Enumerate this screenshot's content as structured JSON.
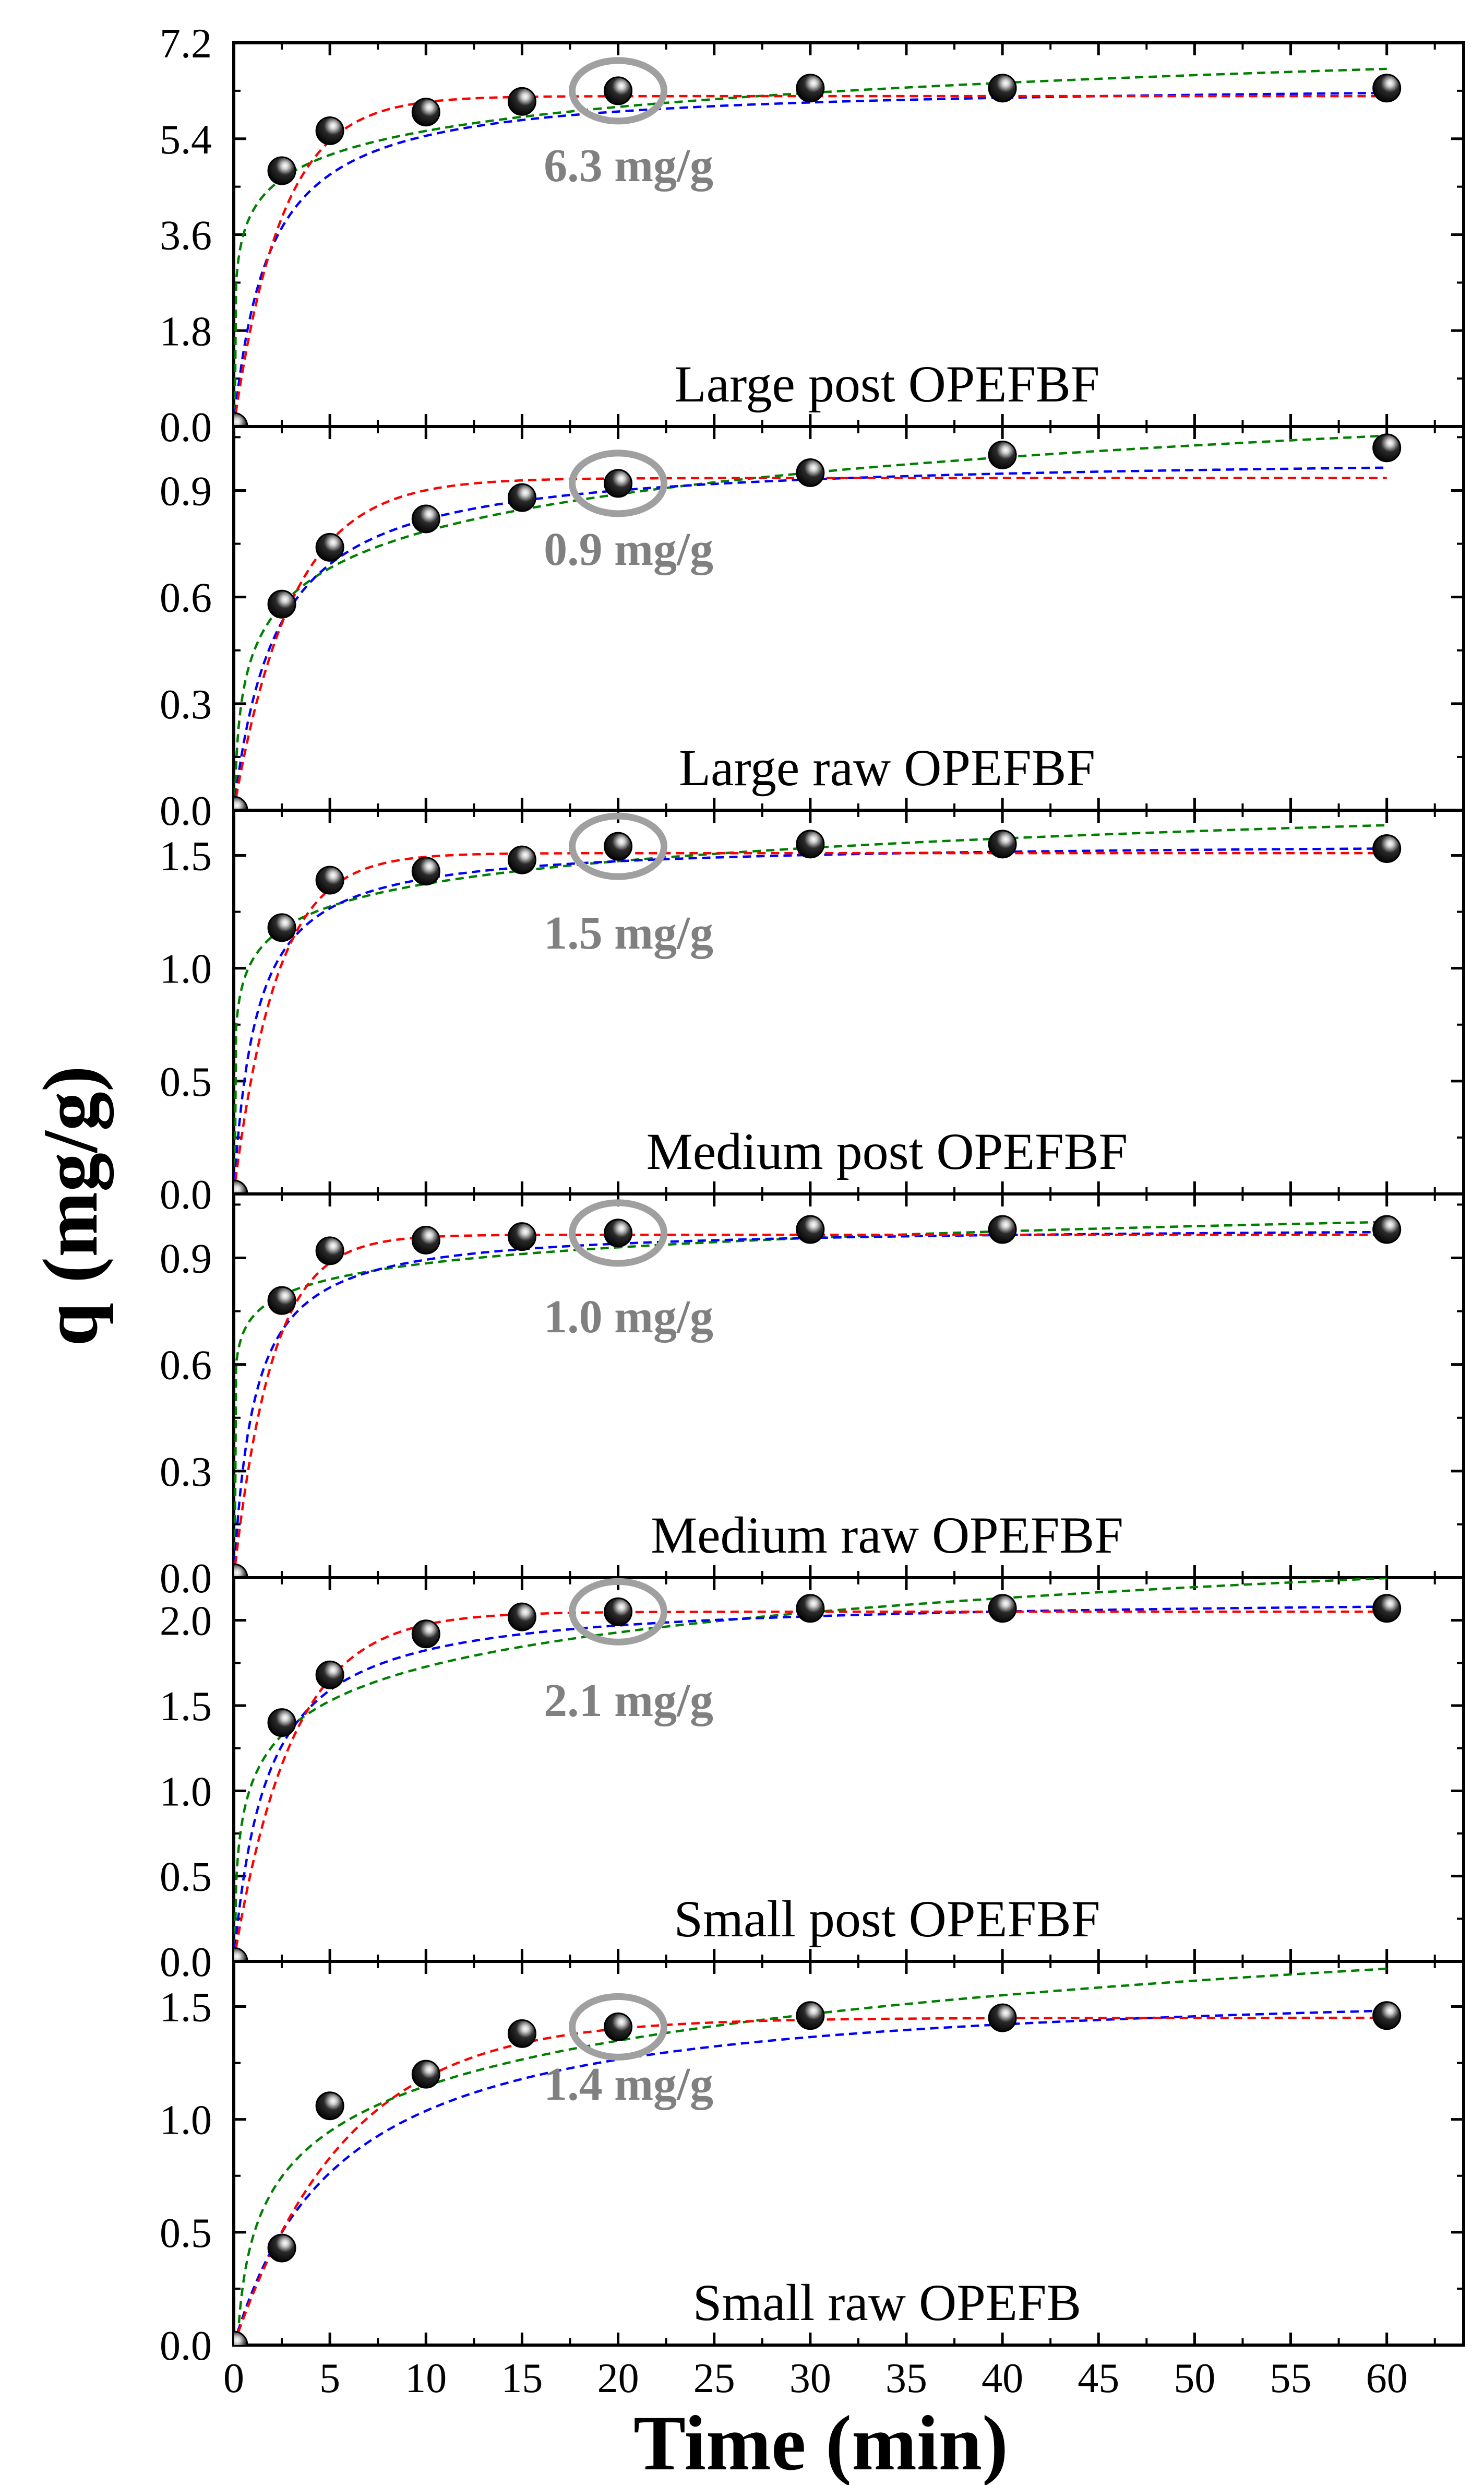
{
  "chart_data": {
    "type": "scatter",
    "xlabel": "Time (min)",
    "ylabel": "q (mg/g)",
    "xlim": [
      0,
      64
    ],
    "x_ticks": [
      "0",
      "5",
      "10",
      "15",
      "20",
      "25",
      "30",
      "35",
      "40",
      "45",
      "50",
      "55",
      "60"
    ],
    "x": [
      0,
      2.5,
      5,
      10,
      15,
      20,
      30,
      40,
      60
    ],
    "fit_colors": {
      "red": "#ff0000",
      "blue": "#0000ff",
      "green": "#008000"
    },
    "highlight_color": "#a0a0a0",
    "panels": [
      {
        "label": "Large post OPEFBF",
        "ylim": [
          0,
          7.2
        ],
        "y_ticks": [
          "0.0",
          "1.8",
          "3.6",
          "5.4",
          "7.2"
        ],
        "y": [
          0,
          4.8,
          5.55,
          5.9,
          6.1,
          6.3,
          6.35,
          6.35,
          6.35
        ],
        "annotation": "6.3 mg/g",
        "highlight_index": 5,
        "fits": {
          "red": {
            "qe": 6.2,
            "k": 0.4
          },
          "blue": {
            "qe": 6.45,
            "k": 0.085
          },
          "green": {
            "a": 4.05,
            "b": 0.65
          }
        }
      },
      {
        "label": "Large raw OPEFBF",
        "ylim": [
          0,
          1.08
        ],
        "y_ticks": [
          "0.0",
          "0.3",
          "0.6",
          "0.9"
        ],
        "y": [
          0,
          0.58,
          0.74,
          0.82,
          0.88,
          0.92,
          0.95,
          1.0,
          1.02
        ],
        "annotation": "0.9 mg/g",
        "highlight_index": 5,
        "fits": {
          "red": {
            "qe": 0.935,
            "k": 0.33
          },
          "blue": {
            "qe": 1.0,
            "k": 0.45
          },
          "green": {
            "a": 0.44,
            "b": 0.15
          }
        }
      },
      {
        "label": "Medium post OPEFBF",
        "ylim": [
          0,
          1.7
        ],
        "y_ticks": [
          "0.0",
          "0.5",
          "1.0",
          "1.5"
        ],
        "y": [
          0,
          1.18,
          1.39,
          1.43,
          1.48,
          1.54,
          1.55,
          1.55,
          1.53
        ],
        "annotation": "1.5 mg/g",
        "highlight_index": 5,
        "fits": {
          "red": {
            "qe": 1.51,
            "k": 0.45
          },
          "blue": {
            "qe": 1.56,
            "k": 0.55
          },
          "green": {
            "a": 1.04,
            "b": 0.145
          }
        }
      },
      {
        "label": "Medium raw OPEFBF",
        "ylim": [
          0,
          1.08
        ],
        "y_ticks": [
          "0.0",
          "0.3",
          "0.6",
          "0.9"
        ],
        "y": [
          0,
          0.78,
          0.92,
          0.95,
          0.96,
          0.97,
          0.98,
          0.98,
          0.98
        ],
        "annotation": "1.0 mg/g",
        "highlight_index": 5,
        "fits": {
          "red": {
            "qe": 0.965,
            "k": 0.5
          },
          "blue": {
            "qe": 0.99,
            "k": 0.95
          },
          "green": {
            "a": 0.735,
            "b": 0.065
          }
        }
      },
      {
        "label": "Small post OPEFBF",
        "ylim": [
          0,
          2.25
        ],
        "y_ticks": [
          "0.0",
          "0.5",
          "1.0",
          "1.5",
          "2.0"
        ],
        "y": [
          0,
          1.4,
          1.68,
          1.92,
          2.02,
          2.05,
          2.07,
          2.07,
          2.07
        ],
        "annotation": "2.1 mg/g",
        "highlight_index": 5,
        "fits": {
          "red": {
            "qe": 2.05,
            "k": 0.33
          },
          "blue": {
            "qe": 2.14,
            "k": 0.27
          },
          "green": {
            "a": 1.06,
            "b": 0.29
          }
        }
      },
      {
        "label": "Small raw OPEFB",
        "ylim": [
          0,
          1.7
        ],
        "y_ticks": [
          "0.0",
          "0.5",
          "1.0",
          "1.5"
        ],
        "y": [
          0,
          0.43,
          1.06,
          1.2,
          1.38,
          1.41,
          1.46,
          1.45,
          1.46
        ],
        "annotation": "1.4 mg/g",
        "highlight_index": 5,
        "fits": {
          "red": {
            "qe": 1.45,
            "k": 0.17
          },
          "blue": {
            "qe": 1.62,
            "k": 0.11
          },
          "green": {
            "a": 0.48,
            "b": 0.29
          }
        }
      }
    ]
  }
}
